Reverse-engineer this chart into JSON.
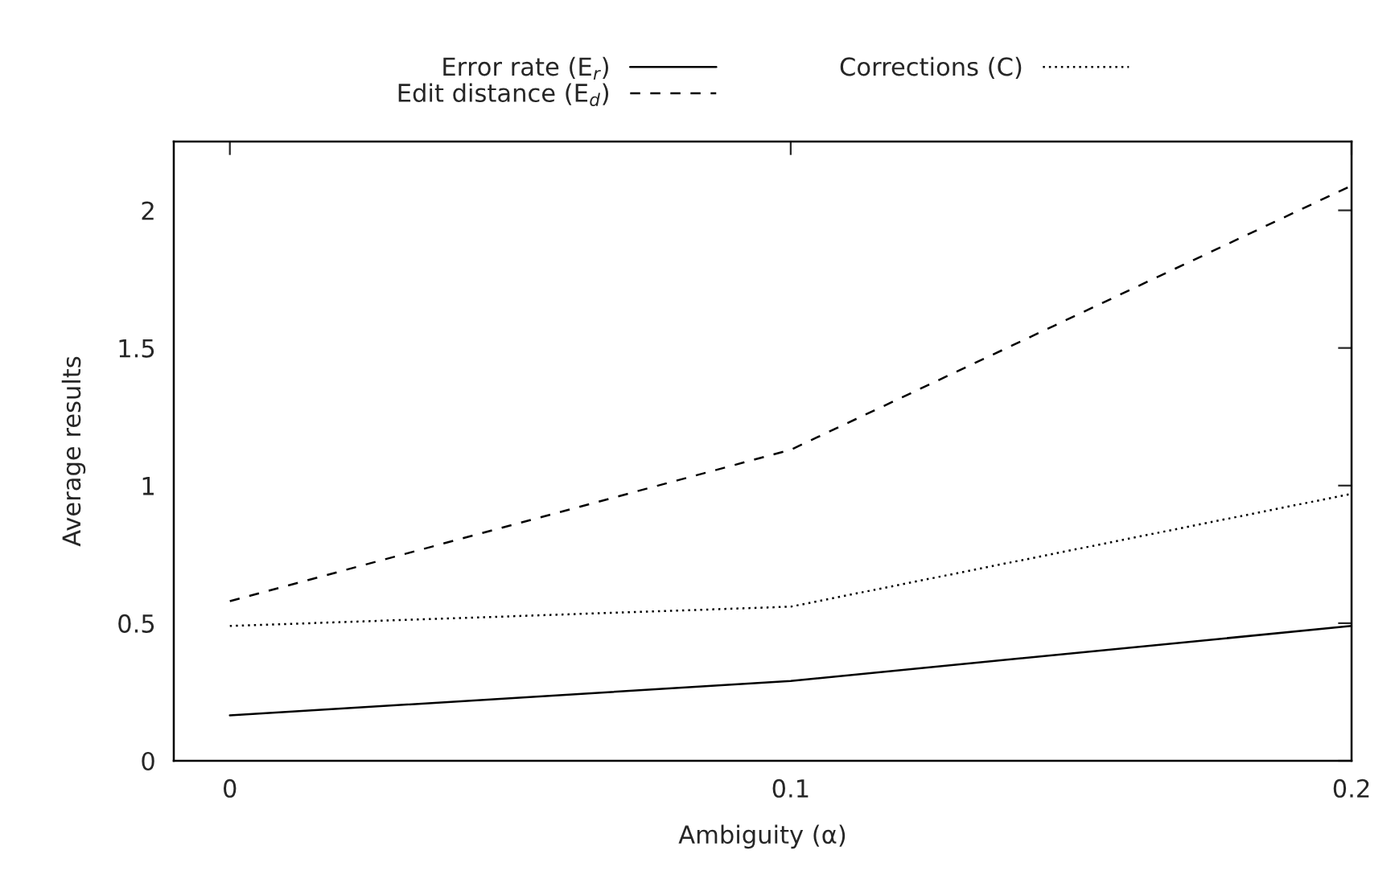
{
  "chart_data": {
    "type": "line",
    "xlabel": "Ambiguity (α)",
    "ylabel": "Average results",
    "x": [
      0,
      0.1,
      0.2
    ],
    "series": [
      {
        "name": "Error rate (E$_{r}$)",
        "color": "#000000",
        "line_style": "solid",
        "values": [
          0.165,
          0.29,
          0.49
        ]
      },
      {
        "name": "Edit distance (E$_{d}$)",
        "color": "#000000",
        "line_style": "dashed",
        "values": [
          0.58,
          1.13,
          2.09
        ]
      },
      {
        "name": "Corrections (C)",
        "color": "#000000",
        "line_style": "dotted",
        "values": [
          0.49,
          0.56,
          0.97
        ]
      }
    ],
    "xlim": [
      -0.01,
      0.2
    ],
    "ylim": [
      0,
      2.25
    ],
    "xticks": [
      0,
      0.1,
      0.2
    ],
    "yticks": [
      0,
      0.5,
      1,
      1.5,
      2
    ],
    "grid": false,
    "legend": "top",
    "marker": "none"
  }
}
